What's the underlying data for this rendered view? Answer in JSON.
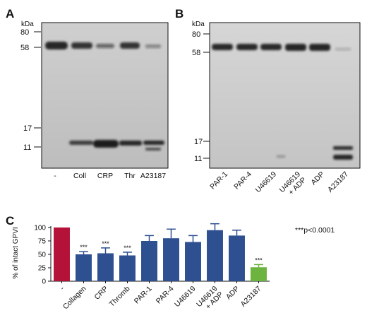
{
  "panelA": {
    "letter": "A",
    "unit": "kDa",
    "markers": [
      {
        "label": "80",
        "kda": 80
      },
      {
        "label": "58",
        "kda": 58
      },
      {
        "label": "17",
        "kda": 17
      },
      {
        "label": "11",
        "kda": 11
      }
    ],
    "lanes": [
      "-",
      "Coll",
      "CRP",
      "Thr",
      "A23187"
    ]
  },
  "panelB": {
    "letter": "B",
    "unit": "kDa",
    "markers": [
      {
        "label": "80",
        "kda": 80
      },
      {
        "label": "58",
        "kda": 58
      },
      {
        "label": "17",
        "kda": 17
      },
      {
        "label": "11",
        "kda": 11
      }
    ],
    "lanes": [
      "PAR-1",
      "PAR-4",
      "U46619",
      "U46619\n+ ADP",
      "ADP",
      "A23187"
    ]
  },
  "chart_data": {
    "letter": "C",
    "type": "bar",
    "ylabel": "% of intact GPVI",
    "ylim": [
      0,
      100
    ],
    "yticks": [
      0,
      25,
      50,
      75,
      100
    ],
    "annotation": "***p<0.0001",
    "significance_mark": "***",
    "categories": [
      "-",
      "Collagen",
      "CRP",
      "Thromb",
      "PAR-1",
      "PAR-4",
      "U46619",
      "U46619\n+ ADP",
      "ADP",
      "A23187"
    ],
    "values": [
      100,
      50,
      52,
      48,
      75,
      80,
      73,
      95,
      85,
      26
    ],
    "errors": [
      0,
      5,
      10,
      6,
      10,
      17,
      12,
      12,
      10,
      5
    ],
    "significant": [
      false,
      true,
      true,
      true,
      false,
      false,
      false,
      false,
      false,
      true
    ],
    "colors": [
      "#b5123a",
      "#2e5090",
      "#2e5090",
      "#2e5090",
      "#2e5090",
      "#2e5090",
      "#2e5090",
      "#2e5090",
      "#2e5090",
      "#6cb33f"
    ]
  }
}
